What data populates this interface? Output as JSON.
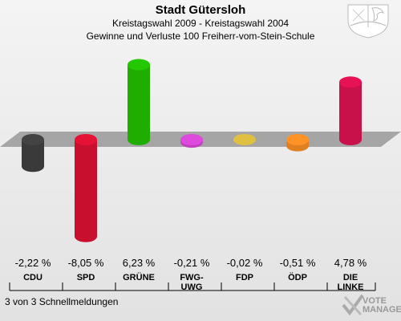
{
  "chart_data": {
    "type": "bar",
    "title": "Stadt Gütersloh",
    "subtitle": "Kreistagswahl 2009 - Kreistagswahl 2004",
    "subtitle2": "Gewinne und Verluste 100 Freiherr-vom-Stein-Schule",
    "categories": [
      {
        "line1": "CDU",
        "line2": ""
      },
      {
        "line1": "SPD",
        "line2": ""
      },
      {
        "line1": "GRÜNE",
        "line2": ""
      },
      {
        "line1": "FWG-",
        "line2": "UWG"
      },
      {
        "line1": "FDP",
        "line2": ""
      },
      {
        "line1": "ÖDP",
        "line2": ""
      },
      {
        "line1": "DIE",
        "line2": "LINKE"
      }
    ],
    "values": [
      -2.22,
      -8.05,
      6.23,
      -0.21,
      -0.02,
      -0.51,
      4.78
    ],
    "value_labels": [
      "-2,22 %",
      "-8,05 %",
      "6,23 %",
      "-0,21 %",
      "-0,02 %",
      "-0,51 %",
      "4,78 %"
    ],
    "colors": [
      "#3a3a3a",
      "#c8102e",
      "#1fae00",
      "#c040c0",
      "#e0c040",
      "#e08020",
      "#c8104a"
    ]
  },
  "footer": "3 von 3 Schnellmeldungen",
  "logo": {
    "line1": "VOTE",
    "line2": "MANAGER",
    "icon": "vote-manager-check-icon"
  },
  "crest_icon": "nrw-coat-of-arms-icon"
}
